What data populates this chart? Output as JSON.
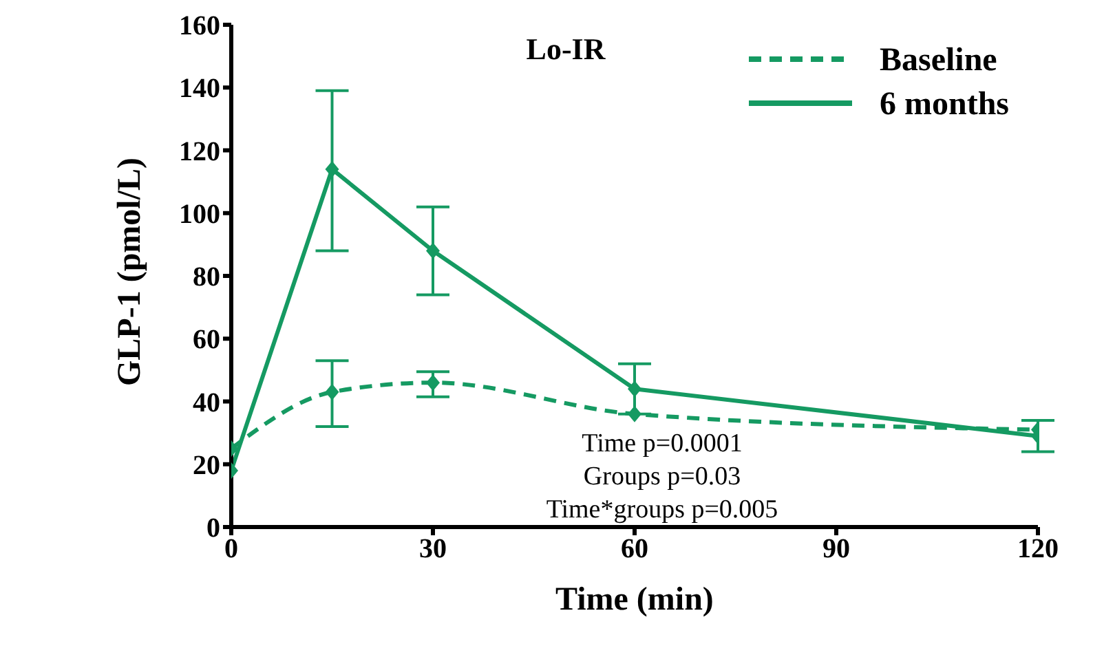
{
  "chart_data": {
    "type": "line",
    "title": "Lo-IR",
    "xlabel": "Time (min)",
    "ylabel": "GLP-1 (pmol/L)",
    "x": [
      0,
      15,
      30,
      60,
      120
    ],
    "series": [
      {
        "name": "Baseline",
        "color": "#159a62",
        "line_style": "dashed",
        "values": [
          25,
          43,
          46,
          36,
          31
        ],
        "errors": [
          null,
          [
            32,
            53
          ],
          [
            41.5,
            49.5
          ],
          null,
          null
        ]
      },
      {
        "name": "6 months",
        "color": "#159a62",
        "line_style": "solid",
        "values": [
          18,
          114,
          88,
          44,
          29
        ],
        "errors": [
          null,
          [
            88,
            139
          ],
          [
            74,
            102
          ],
          [
            36,
            52
          ],
          [
            24,
            34
          ]
        ]
      }
    ],
    "xlim": [
      0,
      120
    ],
    "xticks": [
      0,
      30,
      60,
      90,
      120
    ],
    "ylim": [
      0,
      160
    ],
    "yticks": [
      0,
      20,
      40,
      60,
      80,
      100,
      120,
      140,
      160
    ],
    "marker": "diamond",
    "legend": "top right",
    "grid": false,
    "annotations": [
      "Time p=0.0001",
      "Groups p=0.03",
      "Time*groups p=0.005"
    ]
  }
}
